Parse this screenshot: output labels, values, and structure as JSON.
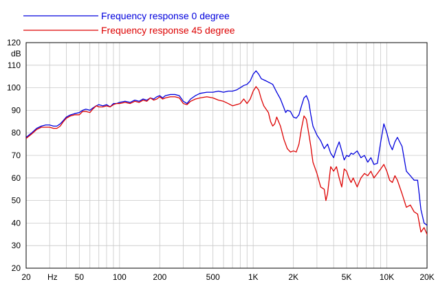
{
  "chart_data": {
    "type": "line",
    "title": "",
    "xlabel": "",
    "ylabel": "",
    "y_unit_label": "dB",
    "x_unit_label": "Hz",
    "x_scale": "log",
    "xlim": [
      20,
      20000
    ],
    "ylim": [
      20,
      120
    ],
    "grid": true,
    "legend_position": "top-left",
    "x_ticks": [
      {
        "value": 20,
        "label": "20"
      },
      {
        "value": 50,
        "label": "50"
      },
      {
        "value": 100,
        "label": "100"
      },
      {
        "value": 200,
        "label": "200"
      },
      {
        "value": 500,
        "label": "500"
      },
      {
        "value": 1000,
        "label": "1K"
      },
      {
        "value": 2000,
        "label": "2K"
      },
      {
        "value": 5000,
        "label": "5K"
      },
      {
        "value": 10000,
        "label": "10K"
      },
      {
        "value": 20000,
        "label": "20K"
      }
    ],
    "y_ticks": [
      20,
      30,
      40,
      50,
      60,
      70,
      80,
      90,
      100,
      110,
      120
    ],
    "series": [
      {
        "name": "Frequency response 0 degree",
        "color": "#0000dd",
        "points": [
          [
            20,
            78
          ],
          [
            22,
            80
          ],
          [
            24,
            82
          ],
          [
            26,
            83
          ],
          [
            28,
            83.5
          ],
          [
            30,
            83.5
          ],
          [
            32,
            83
          ],
          [
            34,
            83
          ],
          [
            36,
            84
          ],
          [
            38,
            85.5
          ],
          [
            40,
            87
          ],
          [
            43,
            88
          ],
          [
            46,
            88.5
          ],
          [
            50,
            89
          ],
          [
            53,
            90
          ],
          [
            56,
            90.5
          ],
          [
            60,
            90
          ],
          [
            63,
            91
          ],
          [
            67,
            92
          ],
          [
            70,
            92.5
          ],
          [
            75,
            92
          ],
          [
            80,
            92.5
          ],
          [
            85,
            91.5
          ],
          [
            90,
            93
          ],
          [
            95,
            93
          ],
          [
            100,
            93.5
          ],
          [
            110,
            94
          ],
          [
            120,
            93.5
          ],
          [
            130,
            94.5
          ],
          [
            140,
            94
          ],
          [
            150,
            95
          ],
          [
            160,
            94.5
          ],
          [
            170,
            95.5
          ],
          [
            180,
            95
          ],
          [
            190,
            96
          ],
          [
            200,
            96.5
          ],
          [
            210,
            95.5
          ],
          [
            220,
            96.5
          ],
          [
            240,
            97
          ],
          [
            260,
            97
          ],
          [
            280,
            96.5
          ],
          [
            300,
            94
          ],
          [
            320,
            93
          ],
          [
            340,
            95
          ],
          [
            370,
            96.5
          ],
          [
            400,
            97.5
          ],
          [
            450,
            98
          ],
          [
            500,
            98
          ],
          [
            550,
            98.5
          ],
          [
            600,
            98
          ],
          [
            650,
            98.5
          ],
          [
            700,
            98.5
          ],
          [
            750,
            99
          ],
          [
            800,
            100
          ],
          [
            850,
            101
          ],
          [
            900,
            101.5
          ],
          [
            950,
            103
          ],
          [
            1000,
            106
          ],
          [
            1050,
            107.5
          ],
          [
            1100,
            106
          ],
          [
            1150,
            104
          ],
          [
            1200,
            103.5
          ],
          [
            1250,
            103
          ],
          [
            1300,
            102.5
          ],
          [
            1400,
            101.5
          ],
          [
            1500,
            98
          ],
          [
            1600,
            95
          ],
          [
            1700,
            91
          ],
          [
            1750,
            89
          ],
          [
            1800,
            90
          ],
          [
            1900,
            89.5
          ],
          [
            2000,
            87
          ],
          [
            2100,
            86.5
          ],
          [
            2200,
            88
          ],
          [
            2300,
            92
          ],
          [
            2400,
            95.5
          ],
          [
            2500,
            96.5
          ],
          [
            2600,
            94
          ],
          [
            2700,
            88
          ],
          [
            2800,
            83
          ],
          [
            3000,
            79
          ],
          [
            3200,
            76.5
          ],
          [
            3400,
            73
          ],
          [
            3600,
            75
          ],
          [
            3800,
            71
          ],
          [
            4000,
            69
          ],
          [
            4200,
            73
          ],
          [
            4400,
            76
          ],
          [
            4600,
            72
          ],
          [
            4800,
            68
          ],
          [
            5000,
            70
          ],
          [
            5200,
            69.5
          ],
          [
            5400,
            71
          ],
          [
            5600,
            70.5
          ],
          [
            6000,
            72
          ],
          [
            6400,
            69
          ],
          [
            6800,
            70
          ],
          [
            7200,
            67
          ],
          [
            7600,
            69
          ],
          [
            8000,
            66
          ],
          [
            8500,
            66.5
          ],
          [
            9000,
            76
          ],
          [
            9500,
            84
          ],
          [
            10000,
            80
          ],
          [
            10500,
            75
          ],
          [
            11000,
            72.5
          ],
          [
            11500,
            76
          ],
          [
            12000,
            78
          ],
          [
            13000,
            74
          ],
          [
            14000,
            63
          ],
          [
            15000,
            61
          ],
          [
            16000,
            59
          ],
          [
            17000,
            59
          ],
          [
            18000,
            46
          ],
          [
            19000,
            40
          ],
          [
            20000,
            39
          ],
          [
            21000,
            37
          ],
          [
            22000,
            42
          ],
          [
            23000,
            46
          ],
          [
            24000,
            48
          ],
          [
            25000,
            41
          ],
          [
            25500,
            34
          ]
        ]
      },
      {
        "name": "Frequency response 45 degree",
        "color": "#dd0000",
        "points": [
          [
            20,
            77.5
          ],
          [
            22,
            79.5
          ],
          [
            24,
            81.5
          ],
          [
            26,
            82.5
          ],
          [
            28,
            82.5
          ],
          [
            30,
            82.5
          ],
          [
            32,
            82
          ],
          [
            34,
            82
          ],
          [
            36,
            83
          ],
          [
            38,
            85
          ],
          [
            40,
            86.5
          ],
          [
            43,
            87.5
          ],
          [
            46,
            88
          ],
          [
            50,
            88
          ],
          [
            53,
            89.5
          ],
          [
            56,
            89.5
          ],
          [
            60,
            89
          ],
          [
            63,
            90.5
          ],
          [
            67,
            92
          ],
          [
            70,
            91.5
          ],
          [
            75,
            91.5
          ],
          [
            80,
            92
          ],
          [
            85,
            91.5
          ],
          [
            90,
            92.5
          ],
          [
            95,
            93
          ],
          [
            100,
            93
          ],
          [
            110,
            93.5
          ],
          [
            120,
            93
          ],
          [
            130,
            94
          ],
          [
            140,
            93.5
          ],
          [
            150,
            94.5
          ],
          [
            160,
            94
          ],
          [
            170,
            95.5
          ],
          [
            180,
            94.5
          ],
          [
            190,
            95
          ],
          [
            200,
            96
          ],
          [
            210,
            95
          ],
          [
            220,
            95.5
          ],
          [
            240,
            96
          ],
          [
            260,
            96
          ],
          [
            280,
            95.5
          ],
          [
            300,
            93
          ],
          [
            320,
            92.5
          ],
          [
            340,
            94
          ],
          [
            370,
            95
          ],
          [
            400,
            95.5
          ],
          [
            450,
            96
          ],
          [
            500,
            95.5
          ],
          [
            550,
            94.5
          ],
          [
            600,
            94
          ],
          [
            650,
            93
          ],
          [
            700,
            92
          ],
          [
            750,
            92.5
          ],
          [
            800,
            93
          ],
          [
            850,
            95
          ],
          [
            900,
            93
          ],
          [
            950,
            95
          ],
          [
            1000,
            98.5
          ],
          [
            1050,
            100.5
          ],
          [
            1100,
            99
          ],
          [
            1150,
            95
          ],
          [
            1200,
            92
          ],
          [
            1300,
            89
          ],
          [
            1350,
            85
          ],
          [
            1400,
            83
          ],
          [
            1450,
            84
          ],
          [
            1500,
            87
          ],
          [
            1600,
            83
          ],
          [
            1700,
            77
          ],
          [
            1800,
            73
          ],
          [
            1900,
            71.5
          ],
          [
            2000,
            72
          ],
          [
            2100,
            71.5
          ],
          [
            2200,
            75
          ],
          [
            2300,
            82
          ],
          [
            2400,
            87.5
          ],
          [
            2500,
            86
          ],
          [
            2600,
            80
          ],
          [
            2700,
            74
          ],
          [
            2800,
            67
          ],
          [
            3000,
            62
          ],
          [
            3200,
            56
          ],
          [
            3400,
            55
          ],
          [
            3500,
            50
          ],
          [
            3600,
            53
          ],
          [
            3800,
            65
          ],
          [
            4000,
            63
          ],
          [
            4200,
            65
          ],
          [
            4400,
            60
          ],
          [
            4600,
            56
          ],
          [
            4800,
            64
          ],
          [
            5000,
            63
          ],
          [
            5200,
            60
          ],
          [
            5400,
            58
          ],
          [
            5600,
            60
          ],
          [
            6000,
            56
          ],
          [
            6400,
            60
          ],
          [
            6800,
            62
          ],
          [
            7200,
            61
          ],
          [
            7600,
            63
          ],
          [
            8000,
            60
          ],
          [
            8500,
            62
          ],
          [
            9000,
            64
          ],
          [
            9500,
            66
          ],
          [
            10000,
            63
          ],
          [
            10500,
            59
          ],
          [
            11000,
            58
          ],
          [
            11500,
            61
          ],
          [
            12000,
            59
          ],
          [
            13000,
            53
          ],
          [
            14000,
            47
          ],
          [
            15000,
            48
          ],
          [
            16000,
            45
          ],
          [
            17000,
            44
          ],
          [
            18000,
            36
          ],
          [
            19000,
            38
          ],
          [
            20000,
            35
          ],
          [
            21000,
            30.5
          ],
          [
            22000,
            34
          ],
          [
            23000,
            30
          ],
          [
            24000,
            27
          ],
          [
            25000,
            36
          ],
          [
            25500,
            36
          ]
        ]
      }
    ]
  }
}
